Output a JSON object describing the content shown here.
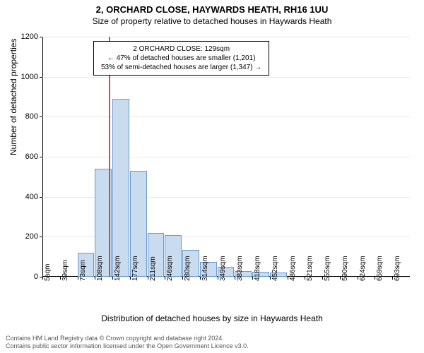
{
  "title_line1": "2, ORCHARD CLOSE, HAYWARDS HEATH, RH16 1UU",
  "title_line2": "Size of property relative to detached houses in Haywards Heath",
  "ylabel": "Number of detached properties",
  "xlabel": "Distribution of detached houses by size in Haywards Heath",
  "footer_line1": "Contains HM Land Registry data © Crown copyright and database right 2024.",
  "footer_line2": "Contains public sector information licensed under the Open Government Licence v3.0.",
  "chart": {
    "type": "histogram",
    "background_color": "#ffffff",
    "grid_color": "#e8e8e8",
    "bar_fill": "#c9dbee",
    "bar_stroke": "#6a9bd1",
    "marker_color": "#c94f57",
    "ylim": [
      0,
      1200
    ],
    "ytick_step": 200,
    "yticks": [
      0,
      200,
      400,
      600,
      800,
      1000,
      1200
    ],
    "x_labels": [
      "5sqm",
      "39sqm",
      "73sqm",
      "108sqm",
      "142sqm",
      "177sqm",
      "211sqm",
      "246sqm",
      "280sqm",
      "314sqm",
      "349sqm",
      "383sqm",
      "418sqm",
      "452sqm",
      "486sqm",
      "521sqm",
      "555sqm",
      "590sqm",
      "624sqm",
      "659sqm",
      "693sqm"
    ],
    "bar_values": [
      0,
      0,
      120,
      540,
      890,
      530,
      220,
      210,
      135,
      75,
      50,
      30,
      25,
      20,
      0,
      0,
      0,
      0,
      0,
      0,
      0
    ],
    "marker_position_sqm": 129,
    "x_range": [
      5,
      693
    ]
  },
  "annotation": {
    "line1": "2 ORCHARD CLOSE: 129sqm",
    "line2": "← 47% of detached houses are smaller (1,201)",
    "line3": "53% of semi-detached houses are larger (1,347) →"
  },
  "fonts": {
    "title_size_pt": 13,
    "subtitle_size_pt": 12,
    "axis_label_size_pt": 12,
    "tick_size_pt": 11,
    "annotation_size_pt": 10,
    "footer_size_pt": 9
  }
}
